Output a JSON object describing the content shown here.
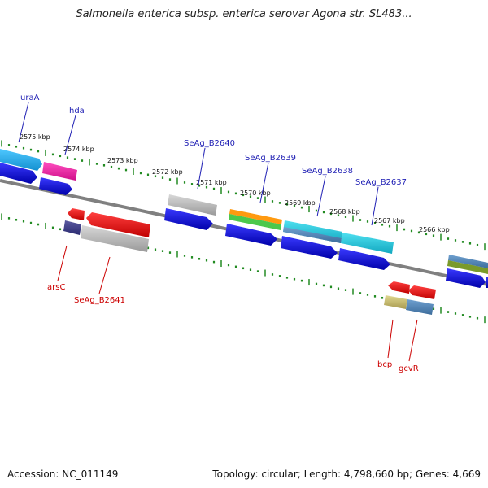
{
  "title": "Salmonella enterica subsp. enterica serovar Agona str. SL483...",
  "footer": {
    "accession": "Accession: NC_011149",
    "summary": "Topology: circular; Length: 4,798,660 bp; Genes: 4,669"
  },
  "colors": {
    "backbone": "#808080",
    "tick": "#228b22",
    "forward_label": "#1f1fb4",
    "reverse_label": "#cc0000"
  },
  "kbp_labels": [
    "2575 kbp",
    "2574 kbp",
    "2573 kbp",
    "2572 kbp",
    "2571 kbp",
    "2570 kbp",
    "2569 kbp",
    "2568 kbp",
    "2567 kbp",
    "2566 kbp"
  ],
  "gene_labels": {
    "forward": [
      "uraA",
      "hda",
      "SeAg_B2640",
      "SeAg_B2639",
      "SeAg_B2638",
      "SeAg_B2637"
    ],
    "reverse": [
      "arsC",
      "SeAg_B2641",
      "bcp",
      "gcvR"
    ]
  }
}
